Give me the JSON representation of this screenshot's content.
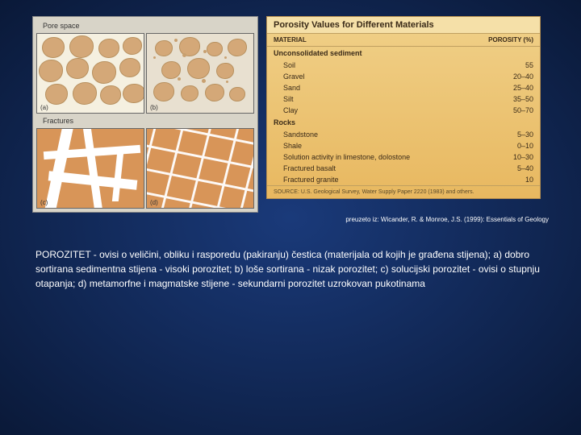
{
  "diagram": {
    "poreLabel": "Pore space",
    "fractureLabel": "Fractures",
    "cells": {
      "a": "(a)",
      "b": "(b)",
      "c": "(c)",
      "d": "(d)"
    },
    "grainColor": "#d4a878",
    "matrixColor": "#f5f0e0",
    "rockColor": "#d89558"
  },
  "table": {
    "title": "Porosity Values for Different Materials",
    "headMaterial": "MATERIAL",
    "headPorosity": "POROSITY (%)",
    "section1": "Unconsolidated sediment",
    "rows1": [
      {
        "m": "Soil",
        "p": "55"
      },
      {
        "m": "Gravel",
        "p": "20–40"
      },
      {
        "m": "Sand",
        "p": "25–40"
      },
      {
        "m": "Silt",
        "p": "35–50"
      },
      {
        "m": "Clay",
        "p": "50–70"
      }
    ],
    "section2": "Rocks",
    "rows2": [
      {
        "m": "Sandstone",
        "p": "5–30"
      },
      {
        "m": "Shale",
        "p": "0–10"
      },
      {
        "m": "Solution activity in limestone, dolostone",
        "p": "10–30"
      },
      {
        "m": "Fractured basalt",
        "p": "5–40"
      },
      {
        "m": "Fractured granite",
        "p": "10"
      }
    ],
    "source": "SOURCE: U.S. Geological Survey, Water Supply Paper 2220 (1983) and others."
  },
  "citation": "preuzeto iz: Wicander, R. & Monroe, J.S. (1999): Essentials of Geology",
  "caption": "POROZITET - ovisi o veličini, obliku i rasporedu (pakiranju) čestica (materijala od kojih je građena stijena); a) dobro sortirana sedimentna stijena - visoki porozitet; b) loše sortirana - nizak porozitet; c) solucijski porozitet - ovisi o stupnju otapanja; d) metamorfne i magmatske stijene - sekundarni porozitet uzrokovan pukotinama"
}
